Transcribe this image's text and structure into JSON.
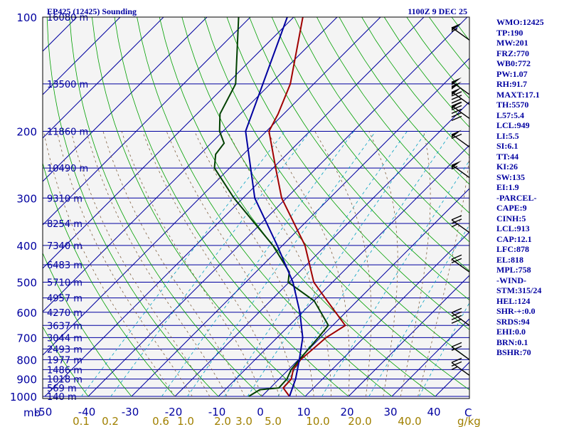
{
  "chart_data": {
    "type": "skew-t sounding",
    "title_left": "EP425 (12425) Sounding",
    "title_right": "1100Z  9 DEC 25",
    "pressure_levels": [
      100,
      200,
      300,
      400,
      500,
      600,
      700,
      800,
      900,
      1000
    ],
    "pressure_unit_label": "mb",
    "temperature_ticks": [
      -50,
      -40,
      -30,
      -20,
      -10,
      0,
      10,
      20,
      30,
      40
    ],
    "temperature_unit_label": "C",
    "mixing_ratio_ticks": [
      "0.1",
      "0.2",
      "0.6",
      "1.0",
      "2.0",
      "3.0",
      "5.0",
      "10.0",
      "20.0",
      "40.0"
    ],
    "mixing_ratio_unit_label": "g/kg",
    "height_labels": [
      {
        "pressure": 100,
        "text": "16080 m"
      },
      {
        "pressure": 150,
        "text": "13500 m"
      },
      {
        "pressure": 200,
        "text": "11860 m"
      },
      {
        "pressure": 250,
        "text": "10490 m"
      },
      {
        "pressure": 300,
        "text": "9310 m"
      },
      {
        "pressure": 350,
        "text": "8254 m"
      },
      {
        "pressure": 400,
        "text": "7340 m"
      },
      {
        "pressure": 450,
        "text": "6483 m"
      },
      {
        "pressure": 500,
        "text": "5710 m"
      },
      {
        "pressure": 550,
        "text": "4957 m"
      },
      {
        "pressure": 600,
        "text": "4270 m"
      },
      {
        "pressure": 650,
        "text": "3637 m"
      },
      {
        "pressure": 700,
        "text": "3044 m"
      },
      {
        "pressure": 750,
        "text": "2493 m"
      },
      {
        "pressure": 800,
        "text": "1977 m"
      },
      {
        "pressure": 850,
        "text": "1486 m"
      },
      {
        "pressure": 900,
        "text": "1018 m"
      },
      {
        "pressure": 950,
        "text": "569 m"
      },
      {
        "pressure": 1000,
        "text": "140 m"
      }
    ],
    "series": [
      {
        "name": "temperature",
        "color": "#a00000",
        "points": [
          [
            100,
            -77.9
          ],
          [
            150,
            -65.4
          ],
          [
            180,
            -61.3
          ],
          [
            200,
            -59.4
          ],
          [
            250,
            -49.4
          ],
          [
            300,
            -41.1
          ],
          [
            400,
            -24.8
          ],
          [
            500,
            -14.3
          ],
          [
            550,
            -8.1
          ],
          [
            650,
            2.9
          ],
          [
            700,
            1.3
          ],
          [
            800,
            0.5
          ],
          [
            850,
            1.1
          ],
          [
            900,
            2.8
          ],
          [
            950,
            3.0
          ],
          [
            1000,
            6.4
          ]
        ]
      },
      {
        "name": "dewpoint",
        "color": "#004000",
        "points": [
          [
            100,
            -92.7
          ],
          [
            150,
            -78.0
          ],
          [
            180,
            -74.7
          ],
          [
            200,
            -70.8
          ],
          [
            215,
            -67.0
          ],
          [
            230,
            -66.4
          ],
          [
            250,
            -63.5
          ],
          [
            300,
            -52.1
          ],
          [
            400,
            -32.2
          ],
          [
            470,
            -22.3
          ],
          [
            500,
            -20.2
          ],
          [
            560,
            -9.9
          ],
          [
            640,
            -1.9
          ],
          [
            650,
            -1.0
          ],
          [
            700,
            -0.5
          ],
          [
            800,
            0.2
          ],
          [
            850,
            0.6
          ],
          [
            900,
            1.8
          ],
          [
            950,
            2.0
          ],
          [
            960,
            -2.0
          ],
          [
            1000,
            -3.0
          ]
        ]
      },
      {
        "name": "parcel",
        "color": "#0000a0",
        "points": [
          [
            100,
            -81.5
          ],
          [
            200,
            -64.8
          ],
          [
            300,
            -47.3
          ],
          [
            400,
            -31.2
          ],
          [
            500,
            -19.1
          ],
          [
            600,
            -10.6
          ],
          [
            700,
            -4.1
          ],
          [
            800,
            0.2
          ],
          [
            900,
            3.8
          ],
          [
            1000,
            6.4
          ]
        ]
      }
    ],
    "wind_barbs": [
      {
        "pressure": 115,
        "speed_kt": 55
      },
      {
        "pressure": 160,
        "speed_kt": 100
      },
      {
        "pressure": 170,
        "speed_kt": 90
      },
      {
        "pressure": 185,
        "speed_kt": 90
      },
      {
        "pressure": 220,
        "speed_kt": 60
      },
      {
        "pressure": 265,
        "speed_kt": 55
      },
      {
        "pressure": 370,
        "speed_kt": 25
      },
      {
        "pressure": 470,
        "speed_kt": 20
      },
      {
        "pressure": 650,
        "speed_kt": 40
      },
      {
        "pressure": 800,
        "speed_kt": 20
      },
      {
        "pressure": 880,
        "speed_kt": 25
      }
    ]
  },
  "stats": [
    "WMO:12425",
    "TP:190",
    "MW:201",
    "FRZ:770",
    "WB0:772",
    "PW:1.07",
    "RH:91.7",
    "MAXT:17.1",
    "TH:5570",
    "L57:5.4",
    "LCL:949",
    "LI:5.5",
    "SI:6.1",
    "TT:44",
    "KI:26",
    "SW:135",
    "EI:1.9",
    "-PARCEL-",
    "CAPE:9",
    "CINH:5",
    "LCL:913",
    "CAP:12.1",
    "LFC:878",
    "EL:818",
    "MPL:758",
    "-WIND-",
    "STM:315/24",
    "HEL:124",
    "SHR-+:0.0",
    "SRDS:94",
    "EHI:0.0",
    "BRN:0.1",
    "BSHR:70"
  ]
}
